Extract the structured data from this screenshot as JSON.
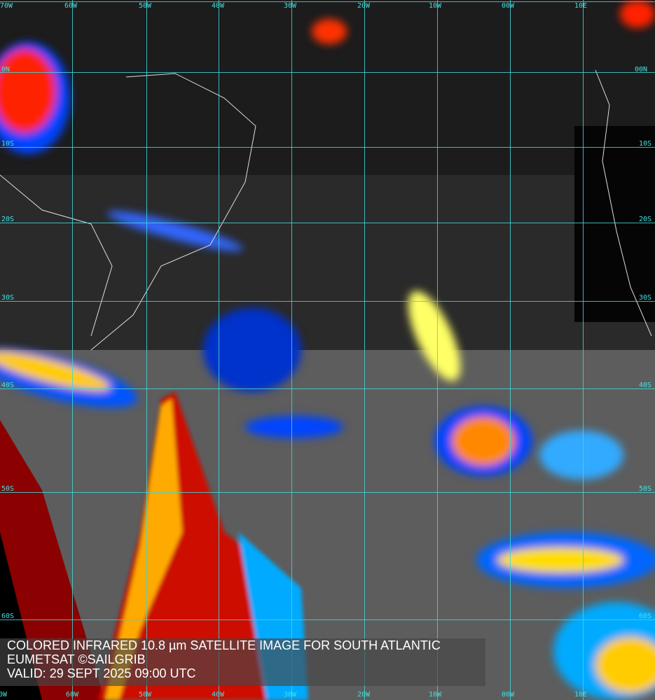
{
  "caption": {
    "line1": "COLORED INFRARED 10.8 µm SATELLITE IMAGE FOR SOUTH ATLANTIC",
    "line2": "EUMETSAT ©SAILGRIB",
    "line3": "VALID:  29 SEPT 2025 09:00 UTC"
  },
  "longitude_labels": [
    "70W",
    "60W",
    "50W",
    "40W",
    "30W",
    "20W",
    "10W",
    "00W",
    "10E"
  ],
  "latitude_labels_left": [
    "0N",
    "10S",
    "20S",
    "30S",
    "40S",
    "50S",
    "60S"
  ],
  "latitude_labels_right": [
    "00N",
    "10S",
    "20S",
    "30S",
    "40S",
    "50S",
    "60S"
  ],
  "colors": {
    "grid": "#3fd6d6",
    "cold_cloud_top": "#8b0000",
    "warm": "#ff0000",
    "mid": "#ffff00",
    "low": "#00aaff",
    "edge": "#0000cc"
  }
}
